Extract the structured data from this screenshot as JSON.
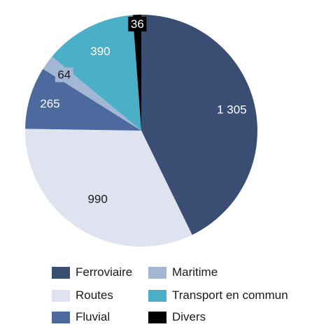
{
  "chart_data": {
    "type": "pie",
    "slices": [
      {
        "label": "Ferroviaire",
        "value": 1305,
        "display": "1 305",
        "color": "#3a4e74"
      },
      {
        "label": "Routes",
        "value": 990,
        "display": "990",
        "color": "#dee3ef"
      },
      {
        "label": "Fluvial",
        "value": 265,
        "display": "265",
        "color": "#4d6a9e"
      },
      {
        "label": "Maritime",
        "value": 64,
        "display": "64",
        "color": "#a3b6d4"
      },
      {
        "label": "Transport en commun",
        "value": 390,
        "display": "390",
        "color": "#4aafc7"
      },
      {
        "label": "Divers",
        "value": 36,
        "display": "36",
        "color": "#000000"
      }
    ],
    "legend_placement": "bottom",
    "legend": {
      "items": [
        "Ferroviaire",
        "Maritime",
        "Routes",
        "Transport en commun",
        "Fluvial",
        "Divers"
      ]
    }
  }
}
